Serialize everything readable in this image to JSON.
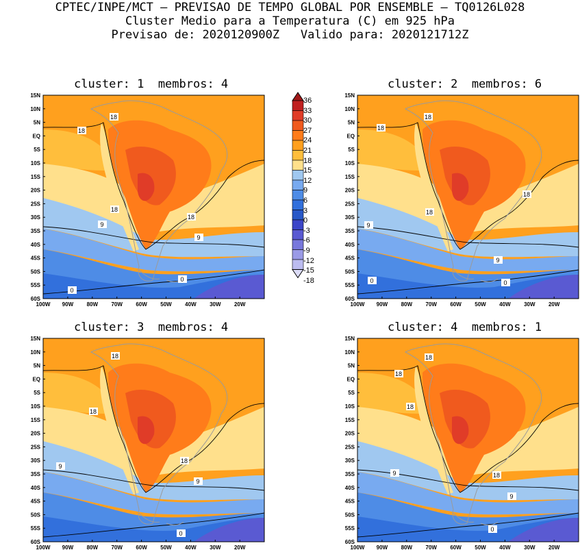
{
  "header": {
    "line1": "CPTEC/INPE/MCT – PREVISAO DE TEMPO GLOBAL POR ENSEMBLE – TQ0126L028",
    "line2": "Cluster Medio para a Temperatura (C) em 925 hPa",
    "line3": "Previsao de: 2020120900Z   Valido para: 2020121712Z"
  },
  "panels": [
    {
      "title": "cluster: 1  membros: 4"
    },
    {
      "title": "cluster: 2  membros: 6"
    },
    {
      "title": "cluster: 3  membros: 4"
    },
    {
      "title": "cluster: 4  membros: 1"
    }
  ],
  "lat_labels": [
    "15N",
    "10N",
    "5N",
    "EQ",
    "5S",
    "10S",
    "15S",
    "20S",
    "25S",
    "30S",
    "35S",
    "40S",
    "45S",
    "50S",
    "55S",
    "60S"
  ],
  "lon_labels": [
    "100W",
    "90W",
    "80W",
    "70W",
    "60W",
    "50W",
    "40W",
    "30W",
    "20W"
  ],
  "colorbar": {
    "levels": [
      "36",
      "33",
      "30",
      "27",
      "24",
      "21",
      "18",
      "15",
      "12",
      "9",
      "6",
      "3",
      "0",
      "-3",
      "-6",
      "-9",
      "-12",
      "-15",
      "-18"
    ],
    "colors": [
      "#a01818",
      "#c02020",
      "#e03c28",
      "#f05a1e",
      "#ff7c1a",
      "#ffa01e",
      "#ffbe3c",
      "#ffe08c",
      "#a0c8f0",
      "#78aaf0",
      "#4e8ce6",
      "#3270dc",
      "#2858c8",
      "#3c46c8",
      "#5a5ad2",
      "#7878dc",
      "#9a9ae6",
      "#bcbcf0",
      "#dcdcf8"
    ]
  },
  "contour_labels": {
    "p1": [
      "18",
      "18",
      "18",
      "18",
      "9",
      "9",
      "0",
      "0"
    ],
    "p2": [
      "18",
      "18",
      "18",
      "18",
      "9",
      "9",
      "0",
      "0"
    ],
    "p3": [
      "18",
      "18",
      "18",
      "9",
      "9",
      "0"
    ],
    "p4": [
      "18",
      "18",
      "18",
      "18",
      "9",
      "9",
      "0"
    ]
  }
}
